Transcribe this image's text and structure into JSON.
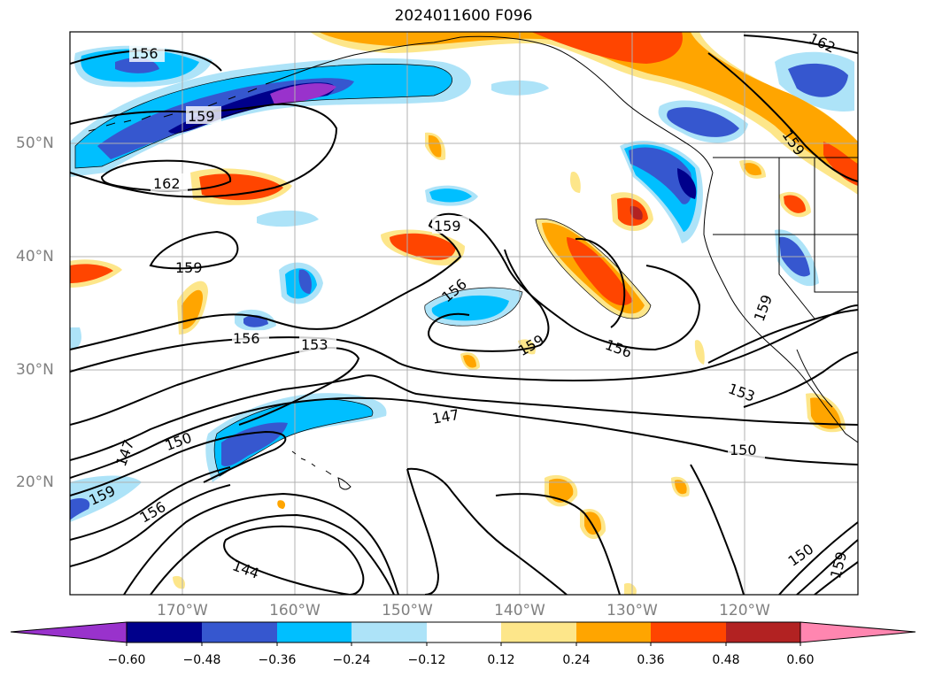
{
  "title": "2024011600 F096",
  "lat_labels": [
    "50°N",
    "40°N",
    "30°N",
    "20°N"
  ],
  "lon_labels": [
    "170°W",
    "160°W",
    "150°W",
    "140°W",
    "130°W",
    "120°W"
  ],
  "colorbar": {
    "colors": [
      "#9932cc",
      "#00008b",
      "#3657cf",
      "#00bfff",
      "#ade3f8",
      "#ffffff",
      "#fde68a",
      "#ffa500",
      "#ff4500",
      "#b22222",
      "#ff86b0"
    ],
    "ticks": [
      "−0.60",
      "−0.48",
      "−0.36",
      "−0.24",
      "−0.12",
      "0.12",
      "0.24",
      "0.36",
      "0.48",
      "0.60"
    ]
  },
  "contour_labels": {
    "c1": "156",
    "c2": "159",
    "c3": "162",
    "c4": "159",
    "c5": "159",
    "c6": "156",
    "c7": "159",
    "c8": "156",
    "c9": "153",
    "c10": "147",
    "c11": "150",
    "c12": "147",
    "c13": "159",
    "c14": "156",
    "c15": "144",
    "c16": "153",
    "c17": "150",
    "c18": "159",
    "c19": "162",
    "c20": "159",
    "c21": "150",
    "c22": "156",
    "c23": "159"
  }
}
